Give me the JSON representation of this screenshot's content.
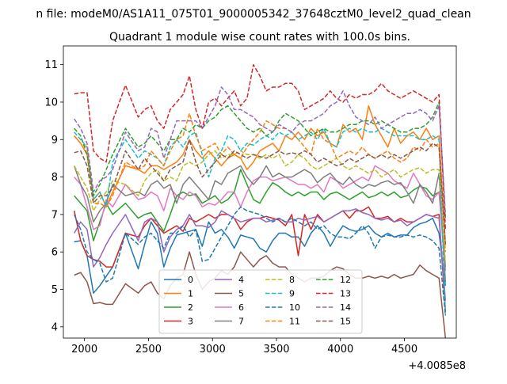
{
  "chart_data": {
    "type": "line",
    "suptitle": "n file: modeM0/AS1A11_075T01_9000005342_37648cztM0_level2_quad_clean",
    "title": "Quadrant 1 module wise count rates with 100.0s bins.",
    "xlabel": "",
    "ylabel": "",
    "x_offset_label": "+4.0085e8",
    "xlim": [
      1835,
      4905
    ],
    "ylim": [
      3.7,
      11.5
    ],
    "xticks": [
      2000,
      2500,
      3000,
      3500,
      4000,
      4500
    ],
    "yticks": [
      4,
      5,
      6,
      7,
      8,
      9,
      10,
      11
    ],
    "grid": false,
    "legend_position": "lower center",
    "legend_columns": 4,
    "x": [
      1920,
      1970,
      2020,
      2070,
      2120,
      2170,
      2220,
      2320,
      2420,
      2470,
      2520,
      2570,
      2620,
      2670,
      2720,
      2770,
      2820,
      2870,
      2920,
      2970,
      3020,
      3070,
      3120,
      3170,
      3220,
      3270,
      3320,
      3370,
      3420,
      3470,
      3520,
      3570,
      3620,
      3670,
      3720,
      3770,
      3820,
      3870,
      3920,
      3970,
      4020,
      4070,
      4120,
      4170,
      4220,
      4270,
      4320,
      4370,
      4420,
      4470,
      4520,
      4570,
      4620,
      4670,
      4720,
      4770,
      4820
    ],
    "series": [
      {
        "name": "0",
        "color": "#1f77b4",
        "dash": "solid",
        "values": [
          6.27,
          6.3,
          5.9,
          4.9,
          5.1,
          5.35,
          5.6,
          6.5,
          5.55,
          6.2,
          6.8,
          6.5,
          5.6,
          6.1,
          6.45,
          6.5,
          6.55,
          6.6,
          6.15,
          6.8,
          6.5,
          6.6,
          6.4,
          6.1,
          6.45,
          6.4,
          6.35,
          6.1,
          6.0,
          6.3,
          6.5,
          6.5,
          6.4,
          6.4,
          6.15,
          6.5,
          6.7,
          6.5,
          6.15,
          6.45,
          6.7,
          6.6,
          6.55,
          6.6,
          6.7,
          6.5,
          6.4,
          6.5,
          6.4,
          6.45,
          6.45,
          6.65,
          6.75,
          6.8,
          6.9,
          6.5,
          5.1
        ]
      },
      {
        "name": "1",
        "color": "#ff7f0e",
        "dash": "solid",
        "values": [
          9.1,
          8.9,
          8.6,
          7.4,
          7.6,
          7.2,
          7.6,
          8.3,
          8.2,
          8.1,
          8.3,
          8.3,
          8.2,
          8.3,
          8.4,
          8.6,
          9.0,
          8.7,
          8.5,
          8.7,
          8.5,
          8.3,
          8.5,
          8.6,
          8.5,
          8.2,
          8.4,
          8.7,
          8.8,
          8.9,
          8.7,
          9.1,
          9.0,
          9.2,
          9.0,
          9.3,
          9.1,
          9.2,
          8.9,
          8.8,
          9.4,
          9.2,
          9.3,
          9.0,
          9.9,
          9.4,
          9.1,
          8.8,
          9.3,
          8.9,
          9.1,
          9.2,
          9.0,
          9.3,
          9.0,
          9.1,
          6.2
        ]
      },
      {
        "name": "2",
        "color": "#2ca02c",
        "dash": "solid",
        "values": [
          7.5,
          7.3,
          7.1,
          6.3,
          6.8,
          7.3,
          7.0,
          7.3,
          6.9,
          7.0,
          7.05,
          6.8,
          6.55,
          7.0,
          7.5,
          7.6,
          7.5,
          7.55,
          7.3,
          7.4,
          7.5,
          7.3,
          7.4,
          7.6,
          8.2,
          7.8,
          7.4,
          7.3,
          7.6,
          7.85,
          7.75,
          7.6,
          7.5,
          7.6,
          7.5,
          7.6,
          7.6,
          7.4,
          7.55,
          7.6,
          7.5,
          7.4,
          7.5,
          7.6,
          7.45,
          7.5,
          7.6,
          7.5,
          7.6,
          7.45,
          7.5,
          7.65,
          7.75,
          7.7,
          7.5,
          7.6,
          5.6
        ]
      },
      {
        "name": "3",
        "color": "#d62728",
        "dash": "solid",
        "values": [
          7.1,
          6.3,
          5.9,
          5.8,
          5.75,
          5.6,
          5.6,
          6.5,
          6.4,
          6.7,
          6.9,
          6.7,
          6.5,
          6.6,
          6.7,
          6.55,
          6.9,
          6.8,
          6.9,
          7.0,
          6.9,
          7.0,
          7.0,
          6.9,
          6.6,
          6.8,
          6.9,
          6.9,
          6.95,
          6.9,
          6.85,
          6.7,
          7.0,
          5.9,
          7.0,
          6.6,
          7.0,
          6.8,
          6.9,
          7.0,
          7.1,
          6.9,
          7.1,
          7.1,
          7.2,
          6.9,
          6.9,
          6.95,
          6.8,
          6.9,
          6.8,
          6.8,
          6.9,
          7.0,
          6.95,
          7.0,
          4.4
        ]
      },
      {
        "name": "4",
        "color": "#9467bd",
        "dash": "solid",
        "values": [
          6.5,
          6.8,
          6.6,
          5.6,
          5.85,
          6.2,
          6.5,
          7.0,
          6.3,
          6.8,
          6.9,
          6.8,
          6.0,
          6.4,
          6.6,
          6.7,
          7.0,
          6.7,
          6.7,
          6.65,
          6.8,
          7.1,
          7.0,
          6.9,
          6.8,
          6.85,
          6.9,
          6.9,
          6.8,
          6.85,
          6.9,
          6.8,
          6.8,
          6.9,
          6.85,
          6.9,
          6.95,
          6.8,
          6.9,
          7.0,
          7.1,
          7.1,
          7.15,
          7.05,
          7.0,
          6.9,
          6.85,
          6.9,
          6.8,
          6.85,
          6.7,
          6.8,
          6.9,
          7.0,
          6.95,
          6.9,
          4.7
        ]
      },
      {
        "name": "5",
        "color": "#8c564b",
        "dash": "solid",
        "values": [
          5.38,
          5.45,
          5.2,
          4.62,
          4.65,
          4.6,
          4.6,
          5.15,
          4.9,
          5.1,
          5.2,
          4.9,
          4.75,
          5.1,
          5.3,
          5.4,
          6.0,
          5.4,
          5.0,
          5.2,
          5.3,
          5.5,
          5.4,
          5.6,
          6.0,
          5.8,
          5.6,
          5.8,
          5.9,
          5.7,
          5.6,
          5.6,
          5.4,
          5.3,
          5.2,
          5.3,
          5.3,
          5.35,
          5.5,
          5.6,
          5.55,
          5.4,
          5.3,
          5.3,
          5.35,
          5.3,
          5.35,
          5.3,
          5.4,
          5.3,
          5.35,
          5.4,
          5.65,
          5.5,
          5.4,
          5.3,
          3.7
        ]
      },
      {
        "name": "6",
        "color": "#e377c2",
        "dash": "solid",
        "values": [
          8.0,
          7.8,
          7.2,
          6.6,
          6.7,
          7.4,
          7.2,
          7.8,
          7.4,
          7.45,
          7.6,
          7.5,
          7.1,
          7.7,
          7.5,
          7.4,
          7.6,
          7.5,
          7.2,
          7.3,
          7.25,
          7.4,
          7.6,
          7.6,
          7.2,
          7.6,
          7.9,
          8.0,
          8.0,
          7.9,
          7.95,
          8.0,
          7.9,
          7.8,
          7.8,
          7.7,
          7.8,
          7.6,
          8.0,
          7.9,
          7.7,
          7.8,
          7.9,
          8.0,
          7.9,
          8.3,
          8.2,
          8.1,
          7.9,
          7.8,
          7.7,
          8.1,
          7.8,
          7.5,
          7.4,
          7.6,
          5.5
        ]
      },
      {
        "name": "7",
        "color": "#7f7f7f",
        "dash": "solid",
        "values": [
          8.3,
          7.8,
          7.5,
          6.8,
          7.1,
          7.3,
          7.8,
          7.5,
          7.6,
          7.5,
          7.8,
          7.9,
          7.7,
          7.8,
          7.3,
          7.8,
          8.0,
          7.8,
          7.6,
          7.4,
          7.9,
          7.8,
          8.1,
          8.2,
          8.3,
          8.0,
          7.8,
          8.0,
          8.3,
          8.0,
          8.1,
          8.0,
          8.0,
          8.1,
          8.2,
          8.1,
          7.85,
          8.0,
          8.1,
          7.9,
          7.8,
          8.0,
          7.8,
          7.7,
          7.8,
          7.75,
          7.85,
          7.9,
          7.8,
          7.85,
          7.6,
          7.3,
          7.8,
          7.6,
          7.3,
          8.1,
          5.2
        ]
      },
      {
        "name": "8",
        "color": "#bcbd22",
        "dash": "dashed",
        "values": [
          8.3,
          8.0,
          7.7,
          7.1,
          7.4,
          7.6,
          7.9,
          7.8,
          7.5,
          7.9,
          8.1,
          8.2,
          7.9,
          8.0,
          7.9,
          8.3,
          8.4,
          8.3,
          8.4,
          8.6,
          8.7,
          8.5,
          8.6,
          8.6,
          8.7,
          8.6,
          8.6,
          8.5,
          8.6,
          8.5,
          8.6,
          8.3,
          8.4,
          8.6,
          8.5,
          8.3,
          8.2,
          8.3,
          8.4,
          8.5,
          8.3,
          8.2,
          8.3,
          8.2,
          8.1,
          8.2,
          8.0,
          8.1,
          8.2,
          8.0,
          8.1,
          8.2,
          8.25,
          8.1,
          8.2,
          8.2,
          5.7
        ]
      },
      {
        "name": "9",
        "color": "#17becf",
        "dash": "dashed",
        "values": [
          9.2,
          9.0,
          8.8,
          7.4,
          7.6,
          7.2,
          8.4,
          9.0,
          8.5,
          8.7,
          8.6,
          8.5,
          8.3,
          8.8,
          9.0,
          8.8,
          9.1,
          9.2,
          8.6,
          8.0,
          8.5,
          8.7,
          9.1,
          9.0,
          8.7,
          8.9,
          8.85,
          9.0,
          9.1,
          9.0,
          9.2,
          9.1,
          9.2,
          9.0,
          9.1,
          9.2,
          9.0,
          9.3,
          8.9,
          8.8,
          9.2,
          9.3,
          9.2,
          9.3,
          9.2,
          9.2,
          9.3,
          9.2,
          9.1,
          9.1,
          9.1,
          9.1,
          9.0,
          9.0,
          9.1,
          9.0,
          4.3
        ]
      },
      {
        "name": "10",
        "color": "#1f77b4",
        "dash": "dashed",
        "values": [
          7.0,
          6.6,
          6.0,
          5.8,
          5.7,
          5.2,
          5.3,
          6.5,
          6.2,
          6.4,
          6.5,
          6.3,
          6.1,
          6.5,
          6.5,
          6.7,
          6.4,
          6.6,
          5.75,
          5.8,
          6.1,
          6.4,
          6.7,
          7.0,
          7.2,
          7.1,
          7.05,
          7.0,
          6.9,
          6.8,
          6.9,
          6.8,
          6.9,
          6.8,
          6.7,
          6.8,
          6.6,
          6.7,
          6.5,
          6.4,
          6.4,
          6.35,
          6.5,
          6.7,
          6.5,
          6.1,
          6.4,
          6.45,
          6.4,
          6.4,
          6.45,
          6.4,
          6.45,
          6.4,
          6.3,
          6.1,
          4.3
        ]
      },
      {
        "name": "11",
        "color": "#ff7f0e",
        "dash": "dashed",
        "values": [
          9.1,
          8.9,
          8.8,
          7.3,
          7.3,
          7.2,
          7.5,
          8.4,
          8.2,
          8.3,
          8.7,
          8.5,
          8.3,
          8.7,
          9.0,
          9.1,
          9.7,
          9.1,
          8.7,
          8.8,
          8.9,
          8.6,
          8.8,
          8.6,
          8.5,
          8.8,
          9.0,
          9.2,
          9.5,
          9.4,
          9.3,
          9.3,
          9.2,
          9.0,
          8.8,
          8.6,
          9.3,
          9.0,
          8.9,
          8.5,
          8.6,
          8.7,
          8.6,
          8.8,
          8.6,
          8.5,
          8.6,
          8.7,
          8.5,
          8.4,
          8.5,
          8.8,
          8.7,
          9.0,
          8.8,
          8.9,
          6.0
        ]
      },
      {
        "name": "12",
        "color": "#2ca02c",
        "dash": "dashed",
        "values": [
          9.3,
          9.1,
          8.6,
          7.5,
          7.8,
          8.2,
          8.6,
          9.3,
          8.8,
          8.9,
          9.1,
          8.9,
          8.7,
          9.0,
          9.0,
          9.3,
          9.2,
          9.4,
          9.3,
          9.5,
          9.6,
          9.8,
          9.9,
          9.7,
          9.5,
          9.3,
          9.2,
          9.3,
          9.1,
          9.2,
          9.5,
          9.7,
          9.6,
          9.5,
          9.3,
          9.1,
          9.2,
          9.3,
          9.2,
          9.2,
          9.3,
          9.4,
          9.4,
          9.5,
          9.5,
          9.4,
          9.5,
          9.4,
          9.3,
          9.2,
          9.2,
          9.3,
          9.3,
          9.4,
          9.6,
          10.0,
          6.9
        ]
      },
      {
        "name": "13",
        "color": "#d62728",
        "dash": "dashed",
        "values": [
          10.22,
          10.25,
          10.25,
          8.7,
          8.5,
          8.4,
          9.5,
          10.45,
          9.6,
          9.8,
          9.9,
          9.5,
          9.3,
          9.8,
          10.0,
          10.2,
          10.7,
          9.8,
          9.3,
          10.0,
          10.1,
          9.9,
          10.1,
          10.3,
          9.9,
          10.1,
          11.0,
          10.7,
          10.3,
          10.4,
          10.4,
          10.5,
          10.5,
          10.3,
          9.8,
          9.9,
          10.0,
          10.1,
          10.3,
          10.1,
          10.0,
          10.2,
          10.1,
          10.2,
          10.2,
          10.3,
          10.5,
          10.3,
          10.2,
          10.1,
          10.2,
          10.3,
          10.2,
          10.1,
          10.0,
          10.2,
          6.6
        ]
      },
      {
        "name": "14",
        "color": "#9467bd",
        "dash": "dashed",
        "values": [
          9.55,
          9.3,
          8.9,
          7.6,
          7.9,
          8.0,
          8.2,
          9.2,
          8.7,
          8.8,
          9.3,
          9.2,
          8.5,
          9.0,
          9.5,
          9.5,
          9.5,
          9.5,
          9.3,
          9.6,
          9.9,
          10.4,
          10.2,
          9.8,
          9.8,
          9.7,
          9.6,
          9.4,
          9.3,
          9.2,
          9.4,
          9.3,
          9.2,
          9.4,
          9.5,
          9.5,
          9.6,
          9.7,
          9.9,
          10.0,
          10.3,
          9.9,
          9.6,
          9.5,
          9.4,
          9.6,
          9.3,
          9.4,
          9.5,
          9.6,
          9.7,
          9.7,
          9.8,
          9.7,
          9.5,
          9.9,
          7.0
        ]
      },
      {
        "name": "15",
        "color": "#8c564b",
        "dash": "dashed",
        "values": [
          8.65,
          8.7,
          8.3,
          7.3,
          7.5,
          7.5,
          7.7,
          8.7,
          8.2,
          8.5,
          8.3,
          8.1,
          7.9,
          8.2,
          8.3,
          8.4,
          9.0,
          8.4,
          8.0,
          8.2,
          8.4,
          8.6,
          8.5,
          8.7,
          8.6,
          8.5,
          8.6,
          8.55,
          8.5,
          8.6,
          8.7,
          8.6,
          8.65,
          8.6,
          8.7,
          8.6,
          8.4,
          8.5,
          8.4,
          8.3,
          8.35,
          8.5,
          8.4,
          8.5,
          8.6,
          8.5,
          8.6,
          8.5,
          8.6,
          8.5,
          8.6,
          8.7,
          8.8,
          8.7,
          8.9,
          8.8,
          6.2
        ]
      }
    ]
  }
}
